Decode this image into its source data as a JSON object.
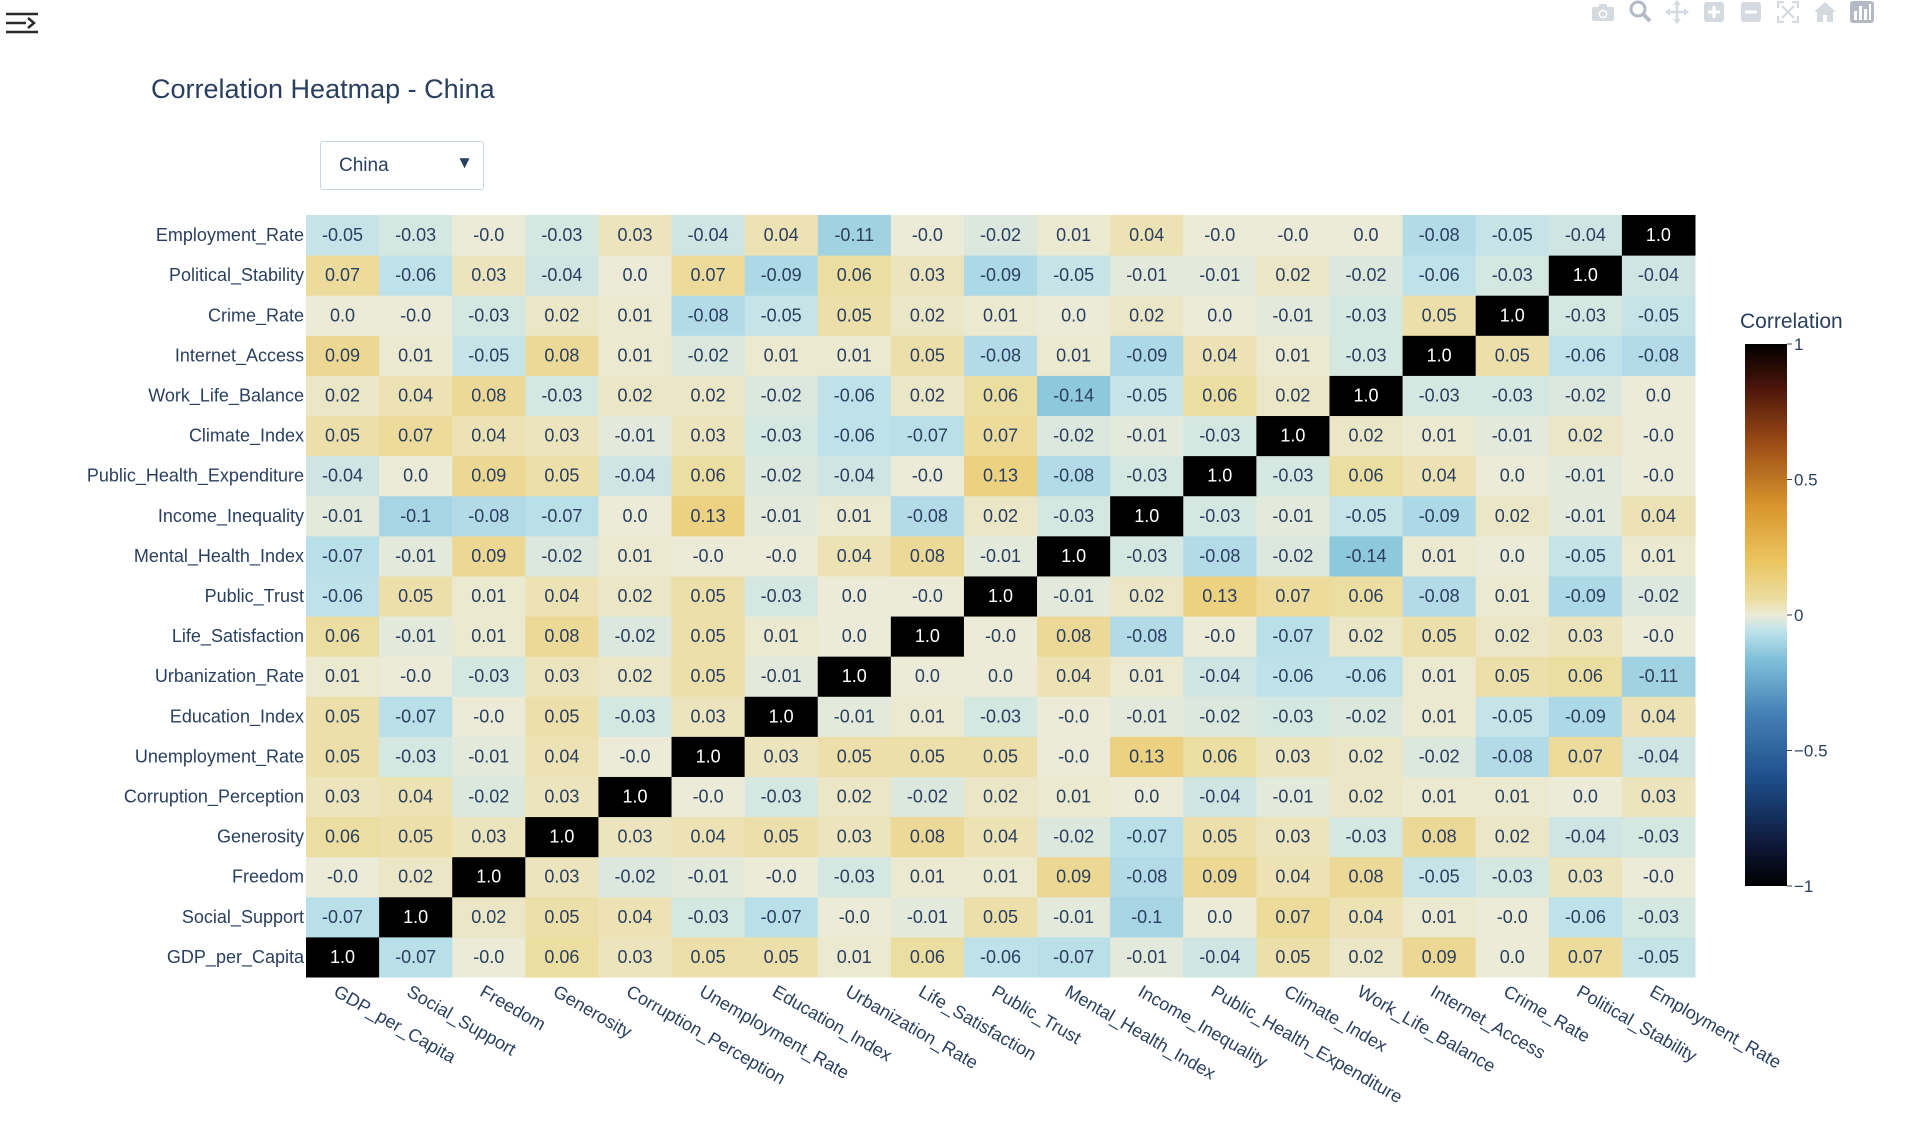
{
  "chart_data": {
    "type": "heatmap",
    "title": "Correlation Heatmap - China",
    "x_categories": [
      "GDP_per_Capita",
      "Social_Support",
      "Freedom",
      "Generosity",
      "Corruption_Perception",
      "Unemployment_Rate",
      "Education_Index",
      "Urbanization_Rate",
      "Life_Satisfaction",
      "Public_Trust",
      "Mental_Health_Index",
      "Income_Inequality",
      "Public_Health_Expenditure",
      "Climate_Index",
      "Work_Life_Balance",
      "Internet_Access",
      "Crime_Rate",
      "Political_Stability",
      "Employment_Rate"
    ],
    "y_categories": [
      "GDP_per_Capita",
      "Social_Support",
      "Freedom",
      "Generosity",
      "Corruption_Perception",
      "Unemployment_Rate",
      "Education_Index",
      "Urbanization_Rate",
      "Life_Satisfaction",
      "Public_Trust",
      "Mental_Health_Index",
      "Income_Inequality",
      "Public_Health_Expenditure",
      "Climate_Index",
      "Work_Life_Balance",
      "Internet_Access",
      "Crime_Rate",
      "Political_Stability",
      "Employment_Rate"
    ],
    "z_labels": [
      [
        "1.0",
        "-0.07",
        "-0.0",
        "0.06",
        "0.03",
        "0.05",
        "0.05",
        "0.01",
        "0.06",
        "-0.06",
        "-0.07",
        "-0.01",
        "-0.04",
        "0.05",
        "0.02",
        "0.09",
        "0.0",
        "0.07",
        "-0.05"
      ],
      [
        "-0.07",
        "1.0",
        "0.02",
        "0.05",
        "0.04",
        "-0.03",
        "-0.07",
        "-0.0",
        "-0.01",
        "0.05",
        "-0.01",
        "-0.1",
        "0.0",
        "0.07",
        "0.04",
        "0.01",
        "-0.0",
        "-0.06",
        "-0.03"
      ],
      [
        "-0.0",
        "0.02",
        "1.0",
        "0.03",
        "-0.02",
        "-0.01",
        "-0.0",
        "-0.03",
        "0.01",
        "0.01",
        "0.09",
        "-0.08",
        "0.09",
        "0.04",
        "0.08",
        "-0.05",
        "-0.03",
        "0.03",
        "-0.0"
      ],
      [
        "0.06",
        "0.05",
        "0.03",
        "1.0",
        "0.03",
        "0.04",
        "0.05",
        "0.03",
        "0.08",
        "0.04",
        "-0.02",
        "-0.07",
        "0.05",
        "0.03",
        "-0.03",
        "0.08",
        "0.02",
        "-0.04",
        "-0.03"
      ],
      [
        "0.03",
        "0.04",
        "-0.02",
        "0.03",
        "1.0",
        "-0.0",
        "-0.03",
        "0.02",
        "-0.02",
        "0.02",
        "0.01",
        "0.0",
        "-0.04",
        "-0.01",
        "0.02",
        "0.01",
        "0.01",
        "0.0",
        "0.03"
      ],
      [
        "0.05",
        "-0.03",
        "-0.01",
        "0.04",
        "-0.0",
        "1.0",
        "0.03",
        "0.05",
        "0.05",
        "0.05",
        "-0.0",
        "0.13",
        "0.06",
        "0.03",
        "0.02",
        "-0.02",
        "-0.08",
        "0.07",
        "-0.04"
      ],
      [
        "0.05",
        "-0.07",
        "-0.0",
        "0.05",
        "-0.03",
        "0.03",
        "1.0",
        "-0.01",
        "0.01",
        "-0.03",
        "-0.0",
        "-0.01",
        "-0.02",
        "-0.03",
        "-0.02",
        "0.01",
        "-0.05",
        "-0.09",
        "0.04"
      ],
      [
        "0.01",
        "-0.0",
        "-0.03",
        "0.03",
        "0.02",
        "0.05",
        "-0.01",
        "1.0",
        "0.0",
        "0.0",
        "0.04",
        "0.01",
        "-0.04",
        "-0.06",
        "-0.06",
        "0.01",
        "0.05",
        "0.06",
        "-0.11"
      ],
      [
        "0.06",
        "-0.01",
        "0.01",
        "0.08",
        "-0.02",
        "0.05",
        "0.01",
        "0.0",
        "1.0",
        "-0.0",
        "0.08",
        "-0.08",
        "-0.0",
        "-0.07",
        "0.02",
        "0.05",
        "0.02",
        "0.03",
        "-0.0"
      ],
      [
        "-0.06",
        "0.05",
        "0.01",
        "0.04",
        "0.02",
        "0.05",
        "-0.03",
        "0.0",
        "-0.0",
        "1.0",
        "-0.01",
        "0.02",
        "0.13",
        "0.07",
        "0.06",
        "-0.08",
        "0.01",
        "-0.09",
        "-0.02"
      ],
      [
        "-0.07",
        "-0.01",
        "0.09",
        "-0.02",
        "0.01",
        "-0.0",
        "-0.0",
        "0.04",
        "0.08",
        "-0.01",
        "1.0",
        "-0.03",
        "-0.08",
        "-0.02",
        "-0.14",
        "0.01",
        "0.0",
        "-0.05",
        "0.01"
      ],
      [
        "-0.01",
        "-0.1",
        "-0.08",
        "-0.07",
        "0.0",
        "0.13",
        "-0.01",
        "0.01",
        "-0.08",
        "0.02",
        "-0.03",
        "1.0",
        "-0.03",
        "-0.01",
        "-0.05",
        "-0.09",
        "0.02",
        "-0.01",
        "0.04"
      ],
      [
        "-0.04",
        "0.0",
        "0.09",
        "0.05",
        "-0.04",
        "0.06",
        "-0.02",
        "-0.04",
        "-0.0",
        "0.13",
        "-0.08",
        "-0.03",
        "1.0",
        "-0.03",
        "0.06",
        "0.04",
        "0.0",
        "-0.01",
        "-0.0"
      ],
      [
        "0.05",
        "0.07",
        "0.04",
        "0.03",
        "-0.01",
        "0.03",
        "-0.03",
        "-0.06",
        "-0.07",
        "0.07",
        "-0.02",
        "-0.01",
        "-0.03",
        "1.0",
        "0.02",
        "0.01",
        "-0.01",
        "0.02",
        "-0.0"
      ],
      [
        "0.02",
        "0.04",
        "0.08",
        "-0.03",
        "0.02",
        "0.02",
        "-0.02",
        "-0.06",
        "0.02",
        "0.06",
        "-0.14",
        "-0.05",
        "0.06",
        "0.02",
        "1.0",
        "-0.03",
        "-0.03",
        "-0.02",
        "0.0"
      ],
      [
        "0.09",
        "0.01",
        "-0.05",
        "0.08",
        "0.01",
        "-0.02",
        "0.01",
        "0.01",
        "0.05",
        "-0.08",
        "0.01",
        "-0.09",
        "0.04",
        "0.01",
        "-0.03",
        "1.0",
        "0.05",
        "-0.06",
        "-0.08"
      ],
      [
        "0.0",
        "-0.0",
        "-0.03",
        "0.02",
        "0.01",
        "-0.08",
        "-0.05",
        "0.05",
        "0.02",
        "0.01",
        "0.0",
        "0.02",
        "0.0",
        "-0.01",
        "-0.03",
        "0.05",
        "1.0",
        "-0.03",
        "-0.05"
      ],
      [
        "0.07",
        "-0.06",
        "0.03",
        "-0.04",
        "0.0",
        "0.07",
        "-0.09",
        "0.06",
        "0.03",
        "-0.09",
        "-0.05",
        "-0.01",
        "-0.01",
        "0.02",
        "-0.02",
        "-0.06",
        "-0.03",
        "1.0",
        "-0.04"
      ],
      [
        "-0.05",
        "-0.03",
        "-0.0",
        "-0.03",
        "0.03",
        "-0.04",
        "0.04",
        "-0.11",
        "-0.0",
        "-0.02",
        "0.01",
        "0.04",
        "-0.0",
        "-0.0",
        "0.0",
        "-0.08",
        "-0.05",
        "-0.04",
        "1.0"
      ]
    ],
    "zmin": -1,
    "zmax": 1,
    "colorscale": [
      [
        0.0,
        "#000000"
      ],
      [
        0.08,
        "#0f1a3c"
      ],
      [
        0.2,
        "#1e4f8c"
      ],
      [
        0.32,
        "#4681b7"
      ],
      [
        0.42,
        "#82c1da"
      ],
      [
        0.47,
        "#bfe2ea"
      ],
      [
        0.5,
        "#ebebd8"
      ],
      [
        0.53,
        "#ecdda0"
      ],
      [
        0.6,
        "#ebc460"
      ],
      [
        0.7,
        "#d9962c"
      ],
      [
        0.82,
        "#9a4a16"
      ],
      [
        0.92,
        "#4a150a"
      ],
      [
        1.0,
        "#000000"
      ]
    ],
    "colorbar": {
      "title": "Correlation",
      "tickvals": [
        1,
        0.5,
        0,
        -0.5,
        -1
      ],
      "ticktext": [
        "1",
        "0.5",
        "0",
        "−0.5",
        "−1"
      ]
    }
  },
  "dropdown": {
    "selected": "China",
    "arrow": "▼"
  },
  "toolbar": {
    "icons": [
      "camera-icon",
      "zoom-icon",
      "pan-icon",
      "zoom-in-icon",
      "zoom-out-icon",
      "autoscale-icon",
      "reset-axes-icon",
      "plotly-logo-icon"
    ]
  },
  "menu": {
    "icon": "sidebar-toggle-icon"
  }
}
